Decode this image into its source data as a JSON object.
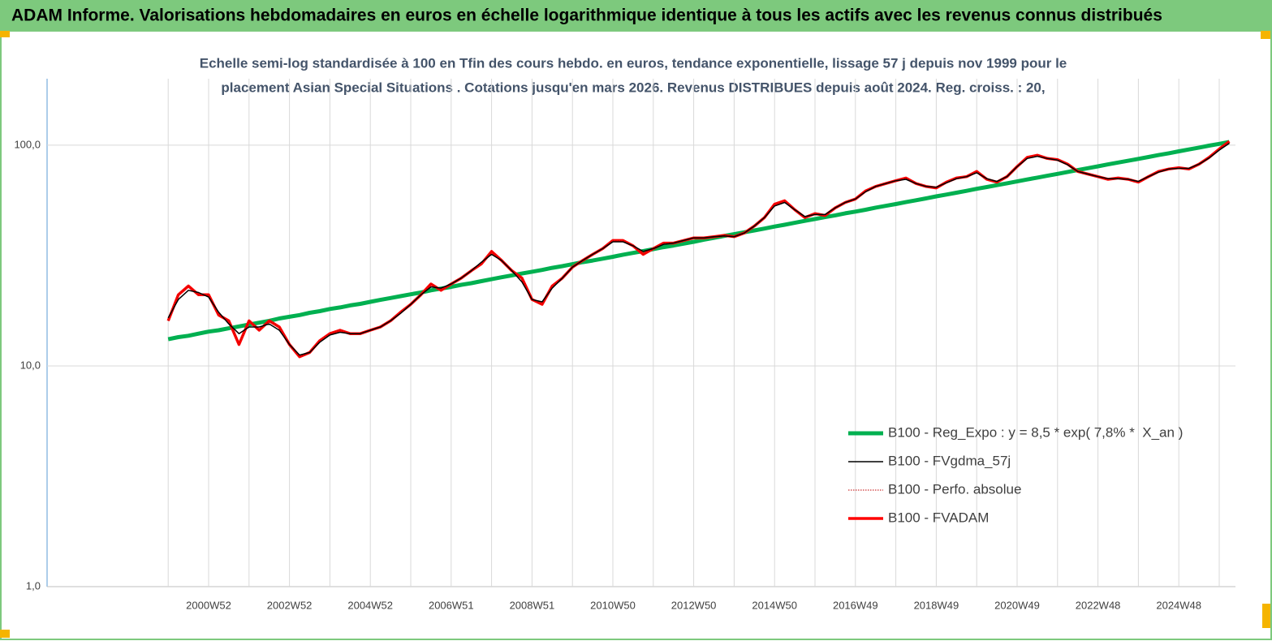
{
  "chart_data": {
    "type": "line",
    "title": "ADAM Informe. Valorisations hebdomadaires en euros en échelle logarithmique identique à tous les actifs avec les revenus connus distribués",
    "subtitle": [
      "Echelle semi-log standardisée à 100 en Tfin des cours hebdo. en euros, tendance exponentielle, lissage 57 j depuis nov 1999 pour le",
      "placement Asian Special Situations . Cotations jusqu'en mars 2026. Revenus DISTRIBUES depuis août 2024. Reg. croiss. : 20,"
    ],
    "log_scale": true,
    "grid": true,
    "legend": "right",
    "ylim": [
      1,
      200
    ],
    "yticks": [
      {
        "value": 1,
        "label": "1,0"
      },
      {
        "value": 10,
        "label": "10,0"
      },
      {
        "value": 100,
        "label": "100,0"
      }
    ],
    "categories": [
      null,
      null,
      null,
      null,
      "2000W52",
      null,
      null,
      null,
      null,
      null,
      null,
      null,
      "2002W52",
      null,
      null,
      null,
      null,
      null,
      null,
      null,
      "2004W52",
      null,
      null,
      null,
      null,
      null,
      null,
      null,
      "2006W51",
      null,
      null,
      null,
      null,
      null,
      null,
      null,
      "2008W51",
      null,
      null,
      null,
      null,
      null,
      null,
      null,
      "2010W50",
      null,
      null,
      null,
      null,
      null,
      null,
      null,
      "2012W50",
      null,
      null,
      null,
      null,
      null,
      null,
      null,
      "2014W50",
      null,
      null,
      null,
      null,
      null,
      null,
      null,
      "2016W49",
      null,
      null,
      null,
      null,
      null,
      null,
      null,
      "2018W49",
      null,
      null,
      null,
      null,
      null,
      null,
      null,
      "2020W49",
      null,
      null,
      null,
      null,
      null,
      null,
      null,
      "2022W48",
      null,
      null,
      null,
      null,
      null,
      null,
      null,
      "2024W48",
      null,
      null,
      null,
      null,
      null
    ],
    "series": [
      {
        "name": "B100 - Reg_Expo : y = 8,5 * exp( 7,8% *  X_an )",
        "color": "#00b050",
        "width": 5,
        "values": [
          13.2,
          13.5,
          13.7,
          14.0,
          14.3,
          14.5,
          14.8,
          15.1,
          15.4,
          15.7,
          16.0,
          16.4,
          16.7,
          17.0,
          17.4,
          17.7,
          18.1,
          18.4,
          18.8,
          19.1,
          19.5,
          19.9,
          20.3,
          20.7,
          21.1,
          21.5,
          22.0,
          22.4,
          22.8,
          23.3,
          23.7,
          24.2,
          24.7,
          25.2,
          25.7,
          26.2,
          26.7,
          27.2,
          27.8,
          28.3,
          28.9,
          29.5,
          30.0,
          30.6,
          31.2,
          31.9,
          32.5,
          33.1,
          33.8,
          34.5,
          35.1,
          35.8,
          36.5,
          37.3,
          38.0,
          38.8,
          39.5,
          40.3,
          41.1,
          41.9,
          42.8,
          43.6,
          44.5,
          45.4,
          46.3,
          47.2,
          48.1,
          49.1,
          50.0,
          51.0,
          52.1,
          53.1,
          54.1,
          55.2,
          56.3,
          57.4,
          58.6,
          59.7,
          60.9,
          62.1,
          63.4,
          64.6,
          65.9,
          67.2,
          68.5,
          69.9,
          71.3,
          72.7,
          74.1,
          75.6,
          77.1,
          78.6,
          80.2,
          81.8,
          83.4,
          85.0,
          86.7,
          88.4,
          90.2,
          91.9,
          93.8,
          95.6,
          97.5,
          99.5,
          101.4,
          103.4
        ]
      },
      {
        "name": "B100 - FVgdma_57j",
        "color": "#000000",
        "width": 1.5,
        "values": [
          16.5,
          20,
          22,
          21.5,
          20.5,
          17.5,
          15.5,
          14,
          15,
          15,
          15.5,
          14.5,
          12.5,
          11.2,
          11.5,
          12.8,
          13.8,
          14.2,
          14,
          14,
          14.5,
          15,
          16,
          17.3,
          19,
          21,
          22.8,
          22.5,
          23.5,
          25,
          27,
          29.5,
          32,
          30,
          27,
          24,
          20,
          19.5,
          22.5,
          25,
          28,
          30,
          32,
          34,
          36.5,
          36.5,
          35,
          33,
          34,
          35.5,
          36,
          37,
          38,
          38,
          38.5,
          38.8,
          38.5,
          40,
          43,
          47,
          53,
          55,
          51,
          47.5,
          48.5,
          48.5,
          52,
          55,
          57,
          61.5,
          65,
          67,
          69,
          70,
          67,
          65,
          64.5,
          67.5,
          70.5,
          72,
          75,
          70.5,
          68.5,
          72,
          80,
          87,
          89,
          87,
          85.5,
          81.5,
          76,
          74,
          72,
          70.5,
          70.5,
          70,
          68.5,
          72,
          75.5,
          78,
          78.5,
          78.5,
          82,
          87.5,
          95,
          102
        ]
      },
      {
        "name": "B100 - Perfo. absolue",
        "color": "#c00000",
        "width": 1,
        "dotted": true,
        "values": [
          16,
          21,
          23,
          21,
          21,
          17,
          16,
          12.5,
          16,
          14.5,
          16,
          15,
          12.5,
          11,
          11.5,
          13,
          14,
          14.5,
          14,
          14,
          14.5,
          15,
          16,
          17.5,
          19,
          21,
          23.5,
          22,
          23.5,
          25,
          27,
          29,
          33,
          30,
          27,
          25,
          20,
          19,
          23,
          25,
          28,
          30,
          32,
          34,
          37,
          37,
          35,
          32,
          34,
          36,
          36,
          37,
          38,
          38,
          38.5,
          39,
          38.5,
          40,
          43,
          47,
          54,
          56,
          51,
          47,
          49,
          48,
          52,
          55,
          57,
          62,
          65,
          67,
          69,
          71,
          67,
          65,
          64,
          68,
          71,
          72,
          76,
          70,
          68,
          72,
          80,
          88,
          90,
          87,
          86,
          82,
          76,
          74,
          72,
          70,
          71,
          70,
          68,
          72,
          76,
          78,
          79,
          78,
          82,
          88,
          96,
          104
        ]
      },
      {
        "name": "B100 - FVADAM",
        "color": "#ff0000",
        "width": 3.5,
        "values": [
          16,
          21,
          23,
          21,
          21,
          17,
          16,
          12.5,
          16,
          14.5,
          16,
          15,
          12.5,
          11,
          11.5,
          13,
          14,
          14.5,
          14,
          14,
          14.5,
          15,
          16,
          17.5,
          19,
          21,
          23.5,
          22,
          23.5,
          25,
          27,
          29,
          33,
          30,
          27,
          25,
          20,
          19,
          23,
          25,
          28,
          30,
          32,
          34,
          37,
          37,
          35,
          32,
          34,
          36,
          36,
          37,
          38,
          38,
          38.5,
          39,
          38.5,
          40,
          43,
          47,
          54,
          56,
          51,
          47,
          49,
          48,
          52,
          55,
          57,
          62,
          65,
          67,
          69,
          71,
          67,
          65,
          64,
          68,
          71,
          72,
          76,
          70,
          68,
          72,
          80,
          88,
          90,
          87,
          86,
          82,
          76,
          74,
          72,
          70,
          71,
          70,
          68,
          72,
          76,
          78,
          79,
          78,
          82,
          88,
          96,
          104
        ]
      }
    ]
  }
}
